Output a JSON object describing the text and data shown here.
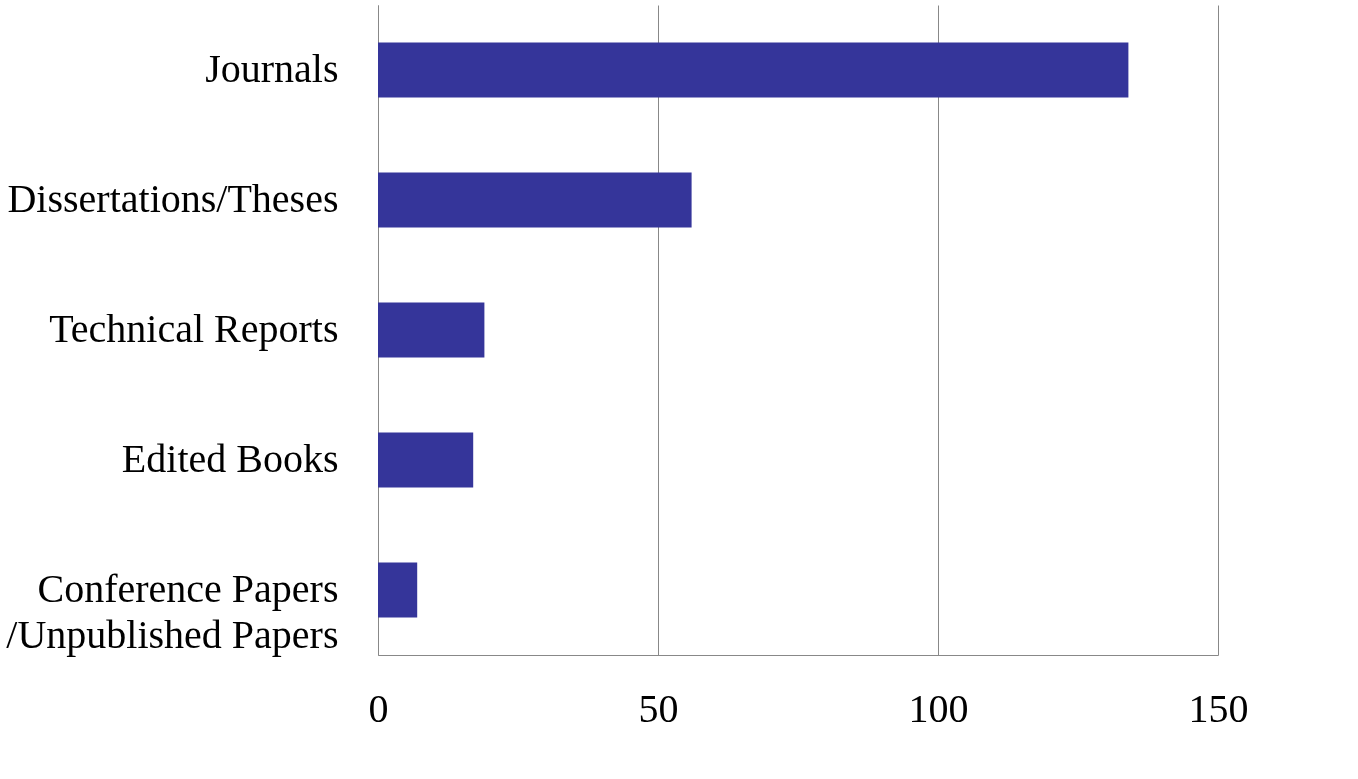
{
  "chart_data": {
    "type": "bar",
    "orientation": "horizontal",
    "categories": [
      "Journals",
      "Dissertations/Theses",
      "Technical Reports",
      "Edited Books",
      "Conference Papers\n/Unpublished Papers"
    ],
    "values": [
      134,
      56,
      19,
      17,
      7
    ],
    "color": "#35359a",
    "xlim": [
      0,
      150
    ],
    "xticks": [
      0,
      50,
      100,
      150
    ],
    "grid": "x"
  }
}
